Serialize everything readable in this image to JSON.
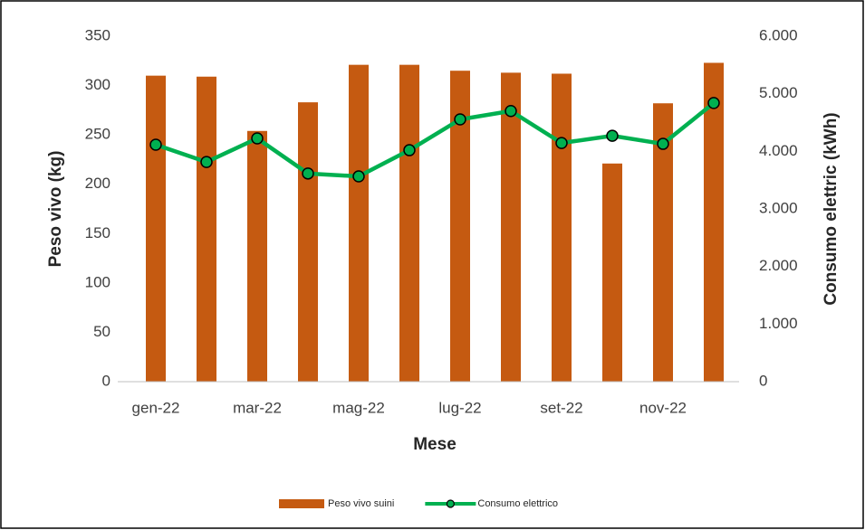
{
  "chart_data": {
    "type": "bar_line",
    "categories": [
      "gen-22",
      null,
      "mar-22",
      null,
      "mag-22",
      null,
      "lug-22",
      null,
      "set-22",
      null,
      "nov-22",
      null
    ],
    "x_label": "Mese",
    "y_label": "Peso vivo (kg)",
    "y2_label": "Consumo elettric (kWh)",
    "series": [
      {
        "name": "Peso vivo suini",
        "type": "bar",
        "color": "#c55a11",
        "values": [
          310,
          309,
          254,
          283,
          321,
          321,
          315,
          313,
          312,
          221,
          282,
          323
        ]
      },
      {
        "name": "Consumo elettrico",
        "type": "line",
        "axis": "y2",
        "color": "#00b050",
        "values": [
          4115,
          3815,
          4225,
          3615,
          3565,
          4020,
          4555,
          4700,
          4145,
          4270,
          4130,
          4840
        ]
      }
    ],
    "ylim": [
      0,
      350
    ],
    "yticks": [
      0,
      50,
      100,
      150,
      200,
      250,
      300,
      350
    ],
    "y2lim": [
      0,
      6000
    ],
    "y2ticks": [
      {
        "value": 0,
        "label": "0"
      },
      {
        "value": 1000,
        "label": "1.000"
      },
      {
        "value": 2000,
        "label": "2.000"
      },
      {
        "value": 3000,
        "label": "3.000"
      },
      {
        "value": 4000,
        "label": "4.000"
      },
      {
        "value": 5000,
        "label": "5.000"
      },
      {
        "value": 6000,
        "label": "6.000"
      }
    ],
    "grid": false,
    "legend_position": "bottom"
  }
}
